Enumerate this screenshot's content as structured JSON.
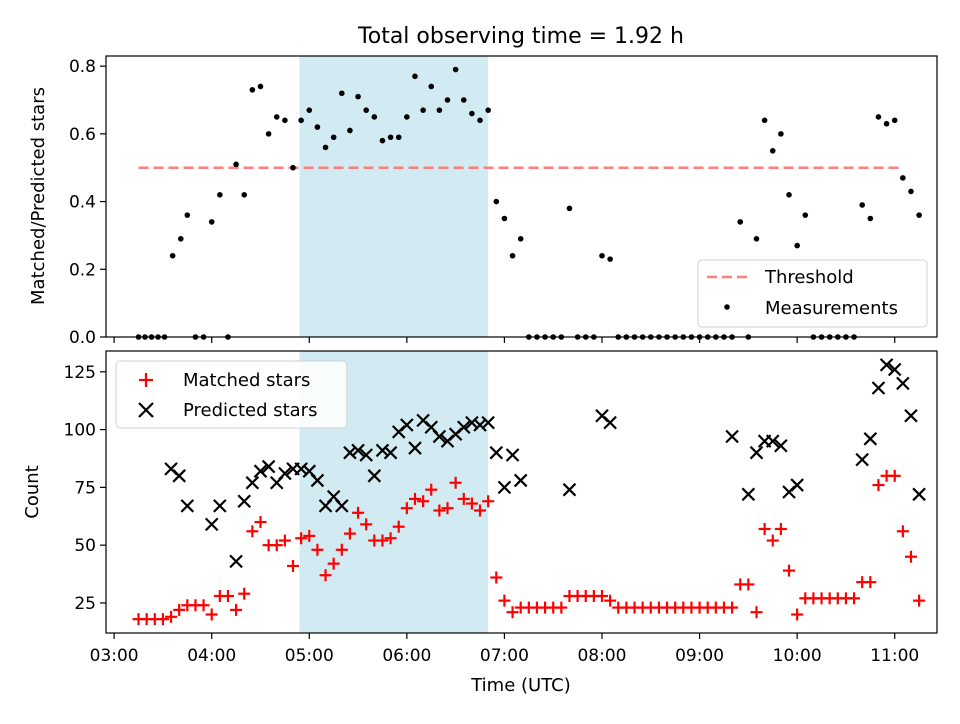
{
  "chart_data": [
    {
      "type": "scatter",
      "title": "Total observing time = 1.92 h",
      "ylabel": "Matched/Predicted stars",
      "ylim": [
        0,
        0.83
      ],
      "xlim": [
        "02:55",
        "11:26"
      ],
      "yticks": [
        "0.0",
        "0.2",
        "0.4",
        "0.6",
        "0.8"
      ],
      "shaded_band": {
        "start": "04:54",
        "end": "06:50",
        "color": "#add8e6"
      },
      "threshold": {
        "name": "Threshold",
        "value": 0.5,
        "x_start": "03:15",
        "x_end": "11:05",
        "color": "#ff7f7f"
      },
      "legend": {
        "position": "lower-right",
        "entries": [
          "Threshold",
          "Measurements"
        ]
      },
      "series": [
        {
          "name": "Measurements",
          "marker": "dot",
          "color": "#000000",
          "points": [
            [
              "03:15",
              0
            ],
            [
              "03:19",
              0
            ],
            [
              "03:23",
              0
            ],
            [
              "03:27",
              0
            ],
            [
              "03:31",
              0
            ],
            [
              "03:36",
              0.24
            ],
            [
              "03:41",
              0.29
            ],
            [
              "03:45",
              0.36
            ],
            [
              "03:50",
              0
            ],
            [
              "03:55",
              0
            ],
            [
              "04:00",
              0.34
            ],
            [
              "04:05",
              0.42
            ],
            [
              "04:10",
              0
            ],
            [
              "04:15",
              0.51
            ],
            [
              "04:20",
              0.42
            ],
            [
              "04:25",
              0.73
            ],
            [
              "04:30",
              0.74
            ],
            [
              "04:35",
              0.6
            ],
            [
              "04:40",
              0.65
            ],
            [
              "04:45",
              0.64
            ],
            [
              "04:50",
              0.5
            ],
            [
              "04:55",
              0.64
            ],
            [
              "05:00",
              0.67
            ],
            [
              "05:05",
              0.62
            ],
            [
              "05:10",
              0.56
            ],
            [
              "05:15",
              0.59
            ],
            [
              "05:20",
              0.72
            ],
            [
              "05:25",
              0.61
            ],
            [
              "05:30",
              0.71
            ],
            [
              "05:35",
              0.67
            ],
            [
              "05:40",
              0.65
            ],
            [
              "05:45",
              0.58
            ],
            [
              "05:50",
              0.59
            ],
            [
              "05:55",
              0.59
            ],
            [
              "06:00",
              0.65
            ],
            [
              "06:05",
              0.77
            ],
            [
              "06:10",
              0.67
            ],
            [
              "06:15",
              0.74
            ],
            [
              "06:20",
              0.67
            ],
            [
              "06:25",
              0.7
            ],
            [
              "06:30",
              0.79
            ],
            [
              "06:35",
              0.7
            ],
            [
              "06:40",
              0.66
            ],
            [
              "06:45",
              0.64
            ],
            [
              "06:50",
              0.67
            ],
            [
              "06:55",
              0.4
            ],
            [
              "07:00",
              0.35
            ],
            [
              "07:05",
              0.24
            ],
            [
              "07:10",
              0.29
            ],
            [
              "07:15",
              0
            ],
            [
              "07:20",
              0
            ],
            [
              "07:25",
              0
            ],
            [
              "07:30",
              0
            ],
            [
              "07:35",
              0
            ],
            [
              "07:40",
              0.38
            ],
            [
              "07:45",
              0
            ],
            [
              "07:50",
              0
            ],
            [
              "07:55",
              0
            ],
            [
              "08:00",
              0.24
            ],
            [
              "08:05",
              0.23
            ],
            [
              "08:10",
              0
            ],
            [
              "08:15",
              0
            ],
            [
              "08:20",
              0
            ],
            [
              "08:25",
              0
            ],
            [
              "08:30",
              0
            ],
            [
              "08:35",
              0
            ],
            [
              "08:40",
              0
            ],
            [
              "08:45",
              0
            ],
            [
              "08:50",
              0
            ],
            [
              "08:55",
              0
            ],
            [
              "09:00",
              0
            ],
            [
              "09:05",
              0
            ],
            [
              "09:10",
              0
            ],
            [
              "09:15",
              0
            ],
            [
              "09:20",
              0
            ],
            [
              "09:25",
              0.34
            ],
            [
              "09:30",
              0
            ],
            [
              "09:35",
              0.29
            ],
            [
              "09:40",
              0.64
            ],
            [
              "09:45",
              0.55
            ],
            [
              "09:50",
              0.6
            ],
            [
              "09:55",
              0.42
            ],
            [
              "10:00",
              0.27
            ],
            [
              "10:05",
              0.36
            ],
            [
              "10:10",
              0
            ],
            [
              "10:15",
              0
            ],
            [
              "10:20",
              0
            ],
            [
              "10:25",
              0
            ],
            [
              "10:30",
              0
            ],
            [
              "10:35",
              0
            ],
            [
              "10:40",
              0.39
            ],
            [
              "10:45",
              0.35
            ],
            [
              "10:50",
              0.65
            ],
            [
              "10:55",
              0.63
            ],
            [
              "11:00",
              0.64
            ],
            [
              "11:05",
              0.47
            ],
            [
              "11:10",
              0.43
            ],
            [
              "11:15",
              0.36
            ]
          ]
        }
      ]
    },
    {
      "type": "scatter",
      "xlabel": "Time (UTC)",
      "ylabel": "Count",
      "ylim": [
        12,
        134
      ],
      "xlim": [
        "02:55",
        "11:26"
      ],
      "xticks": [
        "03:00",
        "04:00",
        "05:00",
        "06:00",
        "07:00",
        "08:00",
        "09:00",
        "10:00",
        "11:00"
      ],
      "yticks": [
        "25",
        "50",
        "75",
        "100",
        "125"
      ],
      "shaded_band": {
        "start": "04:54",
        "end": "06:50",
        "color": "#add8e6"
      },
      "legend": {
        "position": "upper-left",
        "entries": [
          "Matched stars",
          "Predicted stars"
        ]
      },
      "series": [
        {
          "name": "Matched stars",
          "marker": "+",
          "color": "#ff0000",
          "points": [
            [
              "03:15",
              18
            ],
            [
              "03:20",
              18
            ],
            [
              "03:25",
              18
            ],
            [
              "03:30",
              18
            ],
            [
              "03:35",
              19
            ],
            [
              "03:40",
              22
            ],
            [
              "03:45",
              24
            ],
            [
              "03:50",
              24
            ],
            [
              "03:55",
              24
            ],
            [
              "04:00",
              20
            ],
            [
              "04:05",
              28
            ],
            [
              "04:10",
              28
            ],
            [
              "04:15",
              22
            ],
            [
              "04:20",
              29
            ],
            [
              "04:25",
              56
            ],
            [
              "04:30",
              60
            ],
            [
              "04:35",
              50
            ],
            [
              "04:40",
              50
            ],
            [
              "04:45",
              52
            ],
            [
              "04:50",
              41
            ],
            [
              "04:55",
              53
            ],
            [
              "05:00",
              54
            ],
            [
              "05:05",
              48
            ],
            [
              "05:10",
              37
            ],
            [
              "05:15",
              42
            ],
            [
              "05:20",
              48
            ],
            [
              "05:25",
              55
            ],
            [
              "05:30",
              64
            ],
            [
              "05:35",
              59
            ],
            [
              "05:40",
              52
            ],
            [
              "05:45",
              52
            ],
            [
              "05:50",
              53
            ],
            [
              "05:55",
              58
            ],
            [
              "06:00",
              66
            ],
            [
              "06:05",
              70
            ],
            [
              "06:10",
              69
            ],
            [
              "06:15",
              74
            ],
            [
              "06:20",
              65
            ],
            [
              "06:25",
              66
            ],
            [
              "06:30",
              77
            ],
            [
              "06:35",
              70
            ],
            [
              "06:40",
              68
            ],
            [
              "06:45",
              65
            ],
            [
              "06:50",
              69
            ],
            [
              "06:55",
              36
            ],
            [
              "07:00",
              26
            ],
            [
              "07:05",
              21
            ],
            [
              "07:10",
              23
            ],
            [
              "07:15",
              23
            ],
            [
              "07:20",
              23
            ],
            [
              "07:25",
              23
            ],
            [
              "07:30",
              23
            ],
            [
              "07:35",
              23
            ],
            [
              "07:40",
              28
            ],
            [
              "07:45",
              28
            ],
            [
              "07:50",
              28
            ],
            [
              "07:55",
              28
            ],
            [
              "08:00",
              28
            ],
            [
              "08:05",
              26
            ],
            [
              "08:10",
              23
            ],
            [
              "08:15",
              23
            ],
            [
              "08:20",
              23
            ],
            [
              "08:25",
              23
            ],
            [
              "08:30",
              23
            ],
            [
              "08:35",
              23
            ],
            [
              "08:40",
              23
            ],
            [
              "08:45",
              23
            ],
            [
              "08:50",
              23
            ],
            [
              "08:55",
              23
            ],
            [
              "09:00",
              23
            ],
            [
              "09:05",
              23
            ],
            [
              "09:10",
              23
            ],
            [
              "09:15",
              23
            ],
            [
              "09:20",
              23
            ],
            [
              "09:25",
              33
            ],
            [
              "09:30",
              33
            ],
            [
              "09:35",
              21
            ],
            [
              "09:40",
              57
            ],
            [
              "09:45",
              52
            ],
            [
              "09:50",
              57
            ],
            [
              "09:55",
              39
            ],
            [
              "10:00",
              20
            ],
            [
              "10:05",
              27
            ],
            [
              "10:10",
              27
            ],
            [
              "10:15",
              27
            ],
            [
              "10:20",
              27
            ],
            [
              "10:25",
              27
            ],
            [
              "10:30",
              27
            ],
            [
              "10:35",
              27
            ],
            [
              "10:40",
              34
            ],
            [
              "10:45",
              34
            ],
            [
              "10:50",
              76
            ],
            [
              "10:55",
              80
            ],
            [
              "11:00",
              80
            ],
            [
              "11:05",
              56
            ],
            [
              "11:10",
              45
            ],
            [
              "11:15",
              26
            ]
          ]
        },
        {
          "name": "Predicted stars",
          "marker": "x",
          "color": "#000000",
          "points": [
            [
              "03:35",
              83
            ],
            [
              "03:40",
              80
            ],
            [
              "03:45",
              67
            ],
            [
              "04:00",
              59
            ],
            [
              "04:05",
              67
            ],
            [
              "04:15",
              43
            ],
            [
              "04:20",
              69
            ],
            [
              "04:25",
              77
            ],
            [
              "04:30",
              82
            ],
            [
              "04:35",
              84
            ],
            [
              "04:40",
              77
            ],
            [
              "04:45",
              81
            ],
            [
              "04:50",
              83
            ],
            [
              "04:55",
              83
            ],
            [
              "05:00",
              82
            ],
            [
              "05:05",
              78
            ],
            [
              "05:10",
              67
            ],
            [
              "05:15",
              71
            ],
            [
              "05:20",
              67
            ],
            [
              "05:25",
              90
            ],
            [
              "05:30",
              91
            ],
            [
              "05:35",
              89
            ],
            [
              "05:40",
              80
            ],
            [
              "05:45",
              91
            ],
            [
              "05:50",
              90
            ],
            [
              "05:55",
              99
            ],
            [
              "06:00",
              102
            ],
            [
              "06:05",
              92
            ],
            [
              "06:10",
              104
            ],
            [
              "06:15",
              101
            ],
            [
              "06:20",
              97
            ],
            [
              "06:25",
              95
            ],
            [
              "06:30",
              98
            ],
            [
              "06:35",
              101
            ],
            [
              "06:40",
              103
            ],
            [
              "06:45",
              102
            ],
            [
              "06:50",
              103
            ],
            [
              "06:55",
              90
            ],
            [
              "07:00",
              75
            ],
            [
              "07:05",
              89
            ],
            [
              "07:10",
              78
            ],
            [
              "07:40",
              74
            ],
            [
              "08:00",
              106
            ],
            [
              "08:05",
              103
            ],
            [
              "09:20",
              97
            ],
            [
              "09:30",
              72
            ],
            [
              "09:35",
              90
            ],
            [
              "09:40",
              95
            ],
            [
              "09:45",
              95
            ],
            [
              "09:50",
              93
            ],
            [
              "09:55",
              73
            ],
            [
              "10:00",
              76
            ],
            [
              "10:40",
              87
            ],
            [
              "10:45",
              96
            ],
            [
              "10:50",
              118
            ],
            [
              "10:55",
              128
            ],
            [
              "11:00",
              126
            ],
            [
              "11:05",
              120
            ],
            [
              "11:10",
              106
            ],
            [
              "11:15",
              72
            ]
          ]
        }
      ]
    }
  ]
}
